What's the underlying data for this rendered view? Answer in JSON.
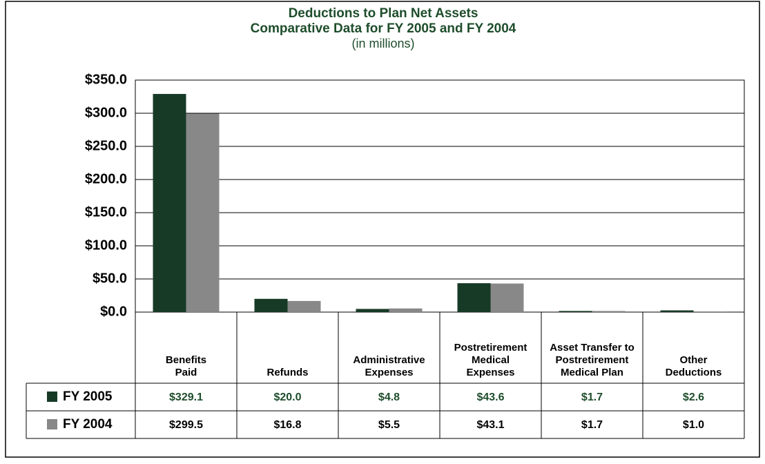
{
  "chart_data": {
    "type": "bar",
    "title": "Deductions to Plan Net Assets",
    "subtitle": "Comparative Data for FY 2005 and FY 2004",
    "unit_note": "(in millions)",
    "categories": [
      "Benefits\nPaid",
      "Refunds",
      "Administrative\nExpenses",
      "Postretirement\nMedical\nExpenses",
      "Asset Transfer to\nPostretirement\nMedical Plan",
      "Other\nDeductions"
    ],
    "series": [
      {
        "name": "FY 2005",
        "color": "#173a26",
        "values": [
          329.1,
          20.0,
          4.8,
          43.6,
          1.7,
          2.6
        ],
        "value_labels": [
          "$329.1",
          "$20.0",
          "$4.8",
          "$43.6",
          "$1.7",
          "$2.6"
        ]
      },
      {
        "name": "FY 2004",
        "color": "#888888",
        "values": [
          299.5,
          16.8,
          5.5,
          43.1,
          1.7,
          1.0
        ],
        "value_labels": [
          "$299.5",
          "$16.8",
          "$5.5",
          "$43.1",
          "$1.7",
          "$1.0"
        ]
      }
    ],
    "ylim": [
      0,
      350
    ],
    "yticks": [
      {
        "value": 0,
        "label": "$0.0"
      },
      {
        "value": 50,
        "label": "$50.0"
      },
      {
        "value": 100,
        "label": "$100.0"
      },
      {
        "value": 150,
        "label": "$150.0"
      },
      {
        "value": 200,
        "label": "$200.0"
      },
      {
        "value": 250,
        "label": "$250.0"
      },
      {
        "value": 300,
        "label": "$300.0"
      },
      {
        "value": 350,
        "label": "$350.0"
      }
    ],
    "grid": true
  }
}
